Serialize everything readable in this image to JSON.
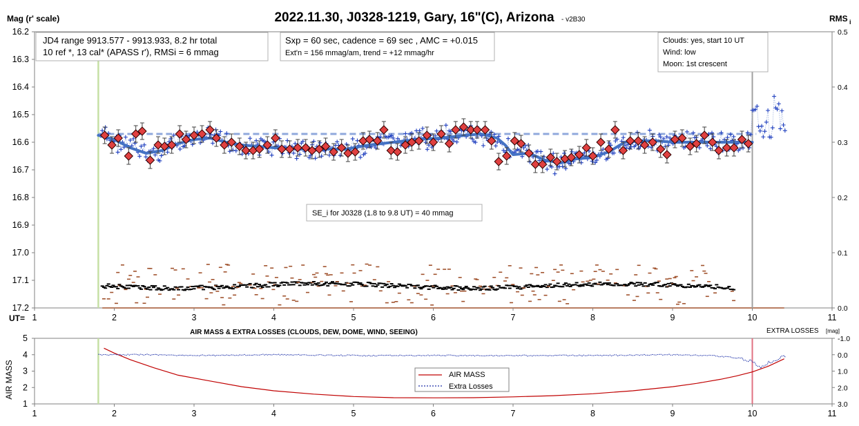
{
  "top": {
    "title": "2022.11.30, J0328-1219, Gary, 16\"(C), Arizona",
    "version": "- v2B30",
    "ylabel_left": "Mag (r' scale)",
    "ylabel_right": "RMS",
    "ylabel_right_sub": "i",
    "xlabel_prefix": "UT=",
    "annotations": {
      "box1_line1": "JD4 range 9913.577 - 9913.933, 8.2 hr total",
      "box1_line2": "10 ref *, 13 cal*  (APASS r'), RMSi = 6 mmag",
      "box2_line1": "Sxp = 60 sec, cadence = 69 sec , AMC = +0.015",
      "box2_line2": "Ext'n = 156 mmag/am, trend = +12 mmag/hr",
      "box3_line1": "Clouds: yes, start 10 UT",
      "box3_line2": "Wind:  low",
      "box3_line3": "Moon: 1st crescent",
      "box4": "SE_i for J0328 (1.8 to 9.8 UT) = 40 mmag"
    }
  },
  "bottom": {
    "title": "AIR MASS & EXTRA LOSSES (CLOUDS, DEW, DOME, WIND, SEEING)",
    "ylabel_left": "AIR MASS",
    "ylabel_right": "EXTRA LOSSES",
    "ylabel_right_unit": "[mag]",
    "legend_airmass": "AIR MASS",
    "legend_extra": "Extra Losses"
  },
  "colors": {
    "blue_series": "#1f3fbf",
    "trend": "#4472c4",
    "diamond_fill": "#e04040",
    "rms_orange": "#a0522d",
    "airmass": "#c00000",
    "extra_losses": "#1c2fa8",
    "start_marker": "#c5e0a5",
    "end_marker": "#a0a0a0",
    "end_marker_bottom": "#e07080"
  },
  "chart_data": [
    {
      "type": "scatter",
      "name": "magnitude light curve",
      "x_ticks": [
        "1",
        "2",
        "3",
        "4",
        "5",
        "6",
        "7",
        "8",
        "9",
        "10",
        "11"
      ],
      "xlim": [
        1,
        11
      ],
      "y_ticks_left": [
        "16.2",
        "16.3",
        "16.4",
        "16.5",
        "16.6",
        "16.7",
        "16.8",
        "16.9",
        "17.0",
        "17.1",
        "17.2"
      ],
      "ylim": [
        16.2,
        17.2
      ],
      "y_reversed": true,
      "y_ticks_right": [
        "0.5",
        "0.4",
        "0.3",
        "0.2",
        "0.1",
        "0.0"
      ],
      "ylim_right": [
        0,
        0.5
      ],
      "reference_level": 16.57,
      "start_marker_x": 1.8,
      "end_marker_x": 10.0,
      "binned_x": [
        1.88,
        1.97,
        2.05,
        2.18,
        2.27,
        2.35,
        2.45,
        2.55,
        2.63,
        2.72,
        2.82,
        2.9,
        3.0,
        3.1,
        3.2,
        3.28,
        3.38,
        3.47,
        3.57,
        3.65,
        3.74,
        3.82,
        3.92,
        4.02,
        4.1,
        4.2,
        4.3,
        4.4,
        4.48,
        4.57,
        4.65,
        4.75,
        4.85,
        4.93,
        5.02,
        5.12,
        5.2,
        5.3,
        5.38,
        5.47,
        5.55,
        5.65,
        5.73,
        5.82,
        5.92,
        6.0,
        6.1,
        6.2,
        6.28,
        6.38,
        6.47,
        6.55,
        6.65,
        6.73,
        6.82,
        6.92,
        7.02,
        7.1,
        7.2,
        7.28,
        7.37,
        7.47,
        7.55,
        7.65,
        7.73,
        7.83,
        7.92,
        8.0,
        8.1,
        8.2,
        8.28,
        8.38,
        8.47,
        8.57,
        8.65,
        8.75,
        8.85,
        8.93,
        9.03,
        9.12,
        9.22,
        9.3,
        9.4,
        9.5,
        9.58,
        9.68,
        9.77,
        9.87,
        9.95
      ],
      "binned_y": [
        16.575,
        16.61,
        16.585,
        16.65,
        16.57,
        16.56,
        16.665,
        16.61,
        16.615,
        16.61,
        16.57,
        16.59,
        16.575,
        16.57,
        16.555,
        16.585,
        16.61,
        16.6,
        16.615,
        16.63,
        16.63,
        16.625,
        16.61,
        16.585,
        16.625,
        16.625,
        16.62,
        16.62,
        16.63,
        16.625,
        16.615,
        16.635,
        16.62,
        16.64,
        16.635,
        16.595,
        16.59,
        16.595,
        16.555,
        16.63,
        16.635,
        16.61,
        16.6,
        16.595,
        16.575,
        16.6,
        16.57,
        16.605,
        16.555,
        16.545,
        16.555,
        16.555,
        16.555,
        16.595,
        16.67,
        16.65,
        16.595,
        16.605,
        16.64,
        16.68,
        16.68,
        16.655,
        16.67,
        16.66,
        16.655,
        16.645,
        16.62,
        16.65,
        16.6,
        16.625,
        16.555,
        16.63,
        16.595,
        16.595,
        16.61,
        16.6,
        16.625,
        16.645,
        16.59,
        16.585,
        16.615,
        16.605,
        16.575,
        16.6,
        16.63,
        16.62,
        16.62,
        16.59,
        16.605
      ],
      "trend_x": [
        1.8,
        2.0,
        2.2,
        2.4,
        2.6,
        2.8,
        3.0,
        3.2,
        3.4,
        3.6,
        3.8,
        4.0,
        4.3,
        4.6,
        4.9,
        5.2,
        5.5,
        5.8,
        6.1,
        6.4,
        6.6,
        6.8,
        6.9,
        7.0,
        7.2,
        7.4,
        7.6,
        7.8,
        8.0,
        8.2,
        8.4,
        8.6,
        8.8,
        9.0,
        9.2,
        9.5,
        9.8,
        10.0
      ],
      "trend_y": [
        16.575,
        16.59,
        16.62,
        16.64,
        16.63,
        16.605,
        16.59,
        16.585,
        16.6,
        16.61,
        16.615,
        16.62,
        16.625,
        16.625,
        16.625,
        16.61,
        16.6,
        16.59,
        16.585,
        16.575,
        16.57,
        16.585,
        16.61,
        16.645,
        16.64,
        16.665,
        16.675,
        16.66,
        16.655,
        16.635,
        16.6,
        16.595,
        16.595,
        16.6,
        16.6,
        16.6,
        16.6,
        16.6
      ]
    },
    {
      "type": "line",
      "name": "air mass and extra losses",
      "x_ticks": [
        "1",
        "2",
        "3",
        "4",
        "5",
        "6",
        "7",
        "8",
        "9",
        "10",
        "11"
      ],
      "xlim": [
        1,
        11
      ],
      "y_ticks_left": [
        "1",
        "2",
        "3",
        "4",
        "5"
      ],
      "ylim": [
        1,
        5
      ],
      "y_ticks_right": [
        "-1.0",
        "0.0",
        "1.0",
        "2.0",
        "3.0"
      ],
      "ylim_right": [
        -1,
        3
      ],
      "series": [
        {
          "name": "AIR MASS",
          "x": [
            1.87,
            2.0,
            2.2,
            2.5,
            2.8,
            3.2,
            3.6,
            4.0,
            4.5,
            5.0,
            5.5,
            6.0,
            6.5,
            7.0,
            7.5,
            8.0,
            8.5,
            9.0,
            9.3,
            9.6,
            9.8,
            10.0,
            10.2,
            10.4
          ],
          "y": [
            4.4,
            4.1,
            3.7,
            3.2,
            2.75,
            2.4,
            2.05,
            1.8,
            1.6,
            1.45,
            1.38,
            1.37,
            1.38,
            1.43,
            1.5,
            1.62,
            1.8,
            2.05,
            2.25,
            2.5,
            2.7,
            2.95,
            3.3,
            3.75
          ]
        },
        {
          "name": "Extra Losses",
          "x": [
            1.8,
            2.5,
            3.0,
            4.0,
            5.0,
            6.0,
            7.0,
            8.0,
            9.0,
            9.5,
            9.8,
            10.0,
            10.1,
            10.2,
            10.3,
            10.4
          ],
          "y": [
            0.0,
            0.0,
            0.05,
            0.0,
            0.05,
            0.05,
            0.05,
            0.05,
            0.0,
            0.05,
            0.2,
            0.4,
            0.8,
            0.5,
            0.3,
            0.1
          ]
        }
      ]
    }
  ]
}
